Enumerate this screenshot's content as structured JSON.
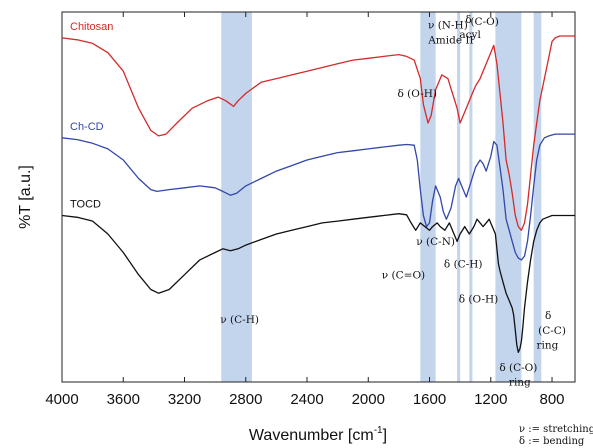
{
  "chart_data": {
    "type": "line",
    "xlabel": "Wavenumber [cm",
    "xlabel_sup": "-1",
    "xlabel_close": "]",
    "ylabel": "%T [a.u.]",
    "xlim": [
      4000,
      650
    ],
    "x_reversed": true,
    "ylim": [
      0,
      100
    ],
    "x_ticks": [
      4000,
      3600,
      3200,
      2800,
      2400,
      2000,
      1600,
      1200,
      800
    ],
    "y_ticks": [],
    "grid": false,
    "series": [
      {
        "name": "Chitosan",
        "color": "#d42a2a",
        "points": [
          [
            4000,
            93
          ],
          [
            3900,
            92.5
          ],
          [
            3800,
            91.5
          ],
          [
            3700,
            89
          ],
          [
            3600,
            84
          ],
          [
            3500,
            74
          ],
          [
            3420,
            68
          ],
          [
            3370,
            66.5
          ],
          [
            3320,
            67
          ],
          [
            3250,
            70
          ],
          [
            3150,
            74
          ],
          [
            3050,
            76
          ],
          [
            2980,
            77
          ],
          [
            2930,
            76
          ],
          [
            2880,
            74.5
          ],
          [
            2850,
            76
          ],
          [
            2800,
            78
          ],
          [
            2700,
            81
          ],
          [
            2600,
            82
          ],
          [
            2500,
            83
          ],
          [
            2400,
            84
          ],
          [
            2300,
            85
          ],
          [
            2200,
            86
          ],
          [
            2100,
            87
          ],
          [
            2000,
            87.5
          ],
          [
            1900,
            88
          ],
          [
            1800,
            88.5
          ],
          [
            1750,
            88
          ],
          [
            1700,
            87
          ],
          [
            1660,
            82
          ],
          [
            1640,
            75
          ],
          [
            1610,
            70
          ],
          [
            1590,
            72
          ],
          [
            1560,
            79
          ],
          [
            1520,
            83
          ],
          [
            1480,
            82
          ],
          [
            1450,
            78
          ],
          [
            1420,
            74
          ],
          [
            1400,
            70
          ],
          [
            1380,
            72
          ],
          [
            1350,
            75
          ],
          [
            1320,
            78
          ],
          [
            1300,
            80
          ],
          [
            1270,
            82
          ],
          [
            1250,
            84
          ],
          [
            1220,
            87
          ],
          [
            1180,
            91
          ],
          [
            1160,
            86
          ],
          [
            1140,
            78
          ],
          [
            1120,
            70
          ],
          [
            1100,
            60
          ],
          [
            1080,
            56
          ],
          [
            1060,
            51
          ],
          [
            1040,
            45
          ],
          [
            1020,
            42
          ],
          [
            1000,
            41
          ],
          [
            980,
            43
          ],
          [
            960,
            48
          ],
          [
            940,
            56
          ],
          [
            920,
            64
          ],
          [
            900,
            70
          ],
          [
            880,
            76
          ],
          [
            850,
            82
          ],
          [
            820,
            88
          ],
          [
            800,
            92
          ],
          [
            780,
            93
          ],
          [
            750,
            93.5
          ],
          [
            700,
            93.5
          ],
          [
            650,
            93.5
          ]
        ]
      },
      {
        "name": "Ch-CD",
        "color": "#3347a8",
        "points": [
          [
            4000,
            66
          ],
          [
            3900,
            65.5
          ],
          [
            3800,
            64.5
          ],
          [
            3700,
            63
          ],
          [
            3600,
            60
          ],
          [
            3500,
            55
          ],
          [
            3420,
            52
          ],
          [
            3380,
            51.5
          ],
          [
            3300,
            52
          ],
          [
            3200,
            52.5
          ],
          [
            3100,
            53
          ],
          [
            3000,
            52.5
          ],
          [
            2950,
            51.5
          ],
          [
            2900,
            50.5
          ],
          [
            2860,
            51
          ],
          [
            2800,
            53
          ],
          [
            2700,
            55
          ],
          [
            2600,
            57
          ],
          [
            2500,
            58.5
          ],
          [
            2400,
            60
          ],
          [
            2300,
            61
          ],
          [
            2200,
            62
          ],
          [
            2100,
            62.5
          ],
          [
            2000,
            63
          ],
          [
            1900,
            63.5
          ],
          [
            1800,
            64
          ],
          [
            1750,
            64.2
          ],
          [
            1700,
            64
          ],
          [
            1680,
            60
          ],
          [
            1660,
            52
          ],
          [
            1640,
            45
          ],
          [
            1620,
            42
          ],
          [
            1600,
            43
          ],
          [
            1580,
            49
          ],
          [
            1560,
            53
          ],
          [
            1530,
            50
          ],
          [
            1510,
            46
          ],
          [
            1490,
            44
          ],
          [
            1460,
            47
          ],
          [
            1430,
            53
          ],
          [
            1410,
            55
          ],
          [
            1380,
            52
          ],
          [
            1360,
            50
          ],
          [
            1330,
            54
          ],
          [
            1300,
            58
          ],
          [
            1270,
            60
          ],
          [
            1250,
            59
          ],
          [
            1230,
            57
          ],
          [
            1200,
            61
          ],
          [
            1180,
            65
          ],
          [
            1160,
            64
          ],
          [
            1140,
            58
          ],
          [
            1120,
            52
          ],
          [
            1100,
            44
          ],
          [
            1080,
            41
          ],
          [
            1060,
            38
          ],
          [
            1040,
            35
          ],
          [
            1020,
            33.5
          ],
          [
            1000,
            33
          ],
          [
            980,
            34
          ],
          [
            960,
            38
          ],
          [
            940,
            45
          ],
          [
            920,
            53
          ],
          [
            900,
            60
          ],
          [
            880,
            64
          ],
          [
            850,
            66
          ],
          [
            820,
            66.5
          ],
          [
            780,
            67
          ],
          [
            700,
            67
          ],
          [
            650,
            67
          ]
        ]
      },
      {
        "name": "TOCD",
        "color": "#111111",
        "points": [
          [
            4000,
            45
          ],
          [
            3900,
            44.5
          ],
          [
            3800,
            43.5
          ],
          [
            3700,
            40
          ],
          [
            3600,
            35
          ],
          [
            3500,
            29
          ],
          [
            3420,
            25
          ],
          [
            3370,
            24
          ],
          [
            3300,
            25
          ],
          [
            3200,
            29
          ],
          [
            3100,
            33
          ],
          [
            3000,
            35
          ],
          [
            2950,
            36
          ],
          [
            2900,
            35.5
          ],
          [
            2850,
            36
          ],
          [
            2800,
            37
          ],
          [
            2700,
            38.5
          ],
          [
            2600,
            40
          ],
          [
            2500,
            41
          ],
          [
            2400,
            42
          ],
          [
            2300,
            43
          ],
          [
            2200,
            43.5
          ],
          [
            2100,
            44
          ],
          [
            2000,
            44.5
          ],
          [
            1900,
            45
          ],
          [
            1800,
            45.5
          ],
          [
            1750,
            45.2
          ],
          [
            1720,
            43
          ],
          [
            1690,
            41
          ],
          [
            1660,
            43
          ],
          [
            1630,
            42
          ],
          [
            1600,
            41
          ],
          [
            1580,
            42
          ],
          [
            1550,
            43
          ],
          [
            1530,
            42
          ],
          [
            1500,
            41
          ],
          [
            1470,
            43
          ],
          [
            1440,
            40
          ],
          [
            1420,
            38
          ],
          [
            1400,
            40
          ],
          [
            1370,
            42
          ],
          [
            1340,
            40
          ],
          [
            1310,
            42
          ],
          [
            1290,
            44
          ],
          [
            1270,
            43
          ],
          [
            1250,
            42
          ],
          [
            1230,
            43
          ],
          [
            1210,
            44
          ],
          [
            1190,
            42
          ],
          [
            1170,
            40
          ],
          [
            1160,
            36
          ],
          [
            1150,
            32
          ],
          [
            1140,
            30
          ],
          [
            1120,
            27
          ],
          [
            1100,
            24
          ],
          [
            1080,
            22
          ],
          [
            1060,
            20
          ],
          [
            1050,
            18
          ],
          [
            1040,
            14
          ],
          [
            1030,
            10
          ],
          [
            1020,
            8
          ],
          [
            1010,
            9
          ],
          [
            1000,
            11
          ],
          [
            990,
            15
          ],
          [
            980,
            20
          ],
          [
            960,
            27
          ],
          [
            940,
            33
          ],
          [
            920,
            38
          ],
          [
            900,
            41
          ],
          [
            880,
            43
          ],
          [
            860,
            44
          ],
          [
            830,
            44.5
          ],
          [
            800,
            45
          ],
          [
            750,
            45
          ],
          [
            700,
            45
          ],
          [
            650,
            45
          ]
        ]
      }
    ],
    "highlight_bands": [
      {
        "from": 2960,
        "to": 2760
      },
      {
        "from": 1660,
        "to": 1560
      },
      {
        "from": 1420,
        "to": 1400
      },
      {
        "from": 1340,
        "to": 1320
      },
      {
        "from": 1170,
        "to": 1000
      },
      {
        "from": 920,
        "to": 870
      }
    ],
    "band_color": "#b8cdea",
    "annotations": [
      {
        "text": "ν (C-H)",
        "x": 2840,
        "y": 16
      },
      {
        "text": "δ (O-H)",
        "x": 1680,
        "y": 77
      },
      {
        "text": "ν (N-H)",
        "x": 1480,
        "y": 95.5
      },
      {
        "text": "Amide II",
        "x": 1460,
        "y": 91.5
      },
      {
        "text": "δ",
        "x": 1345,
        "y": 97
      },
      {
        "text": "acyl",
        "x": 1335,
        "y": 93
      },
      {
        "text": "(C-O)",
        "x": 1240,
        "y": 96.5
      },
      {
        "text": "ν (C-N)",
        "x": 1560,
        "y": 37
      },
      {
        "text": "ν (C=O)",
        "x": 1770,
        "y": 28
      },
      {
        "text": "δ (C-H)",
        "x": 1380,
        "y": 31
      },
      {
        "text": "δ (O-H)",
        "x": 1280,
        "y": 21.5
      },
      {
        "text": "δ",
        "x": 825,
        "y": 17
      },
      {
        "text": "(C-C)",
        "x": 800,
        "y": 13
      },
      {
        "text": "ring",
        "x": 830,
        "y": 9
      },
      {
        "text": "δ  (C-O)",
        "x": 1020,
        "y": 3
      },
      {
        "text": "ring",
        "x": 1010,
        "y": -1
      }
    ],
    "notes": [
      "ν := stretching",
      "δ := bending"
    ]
  }
}
